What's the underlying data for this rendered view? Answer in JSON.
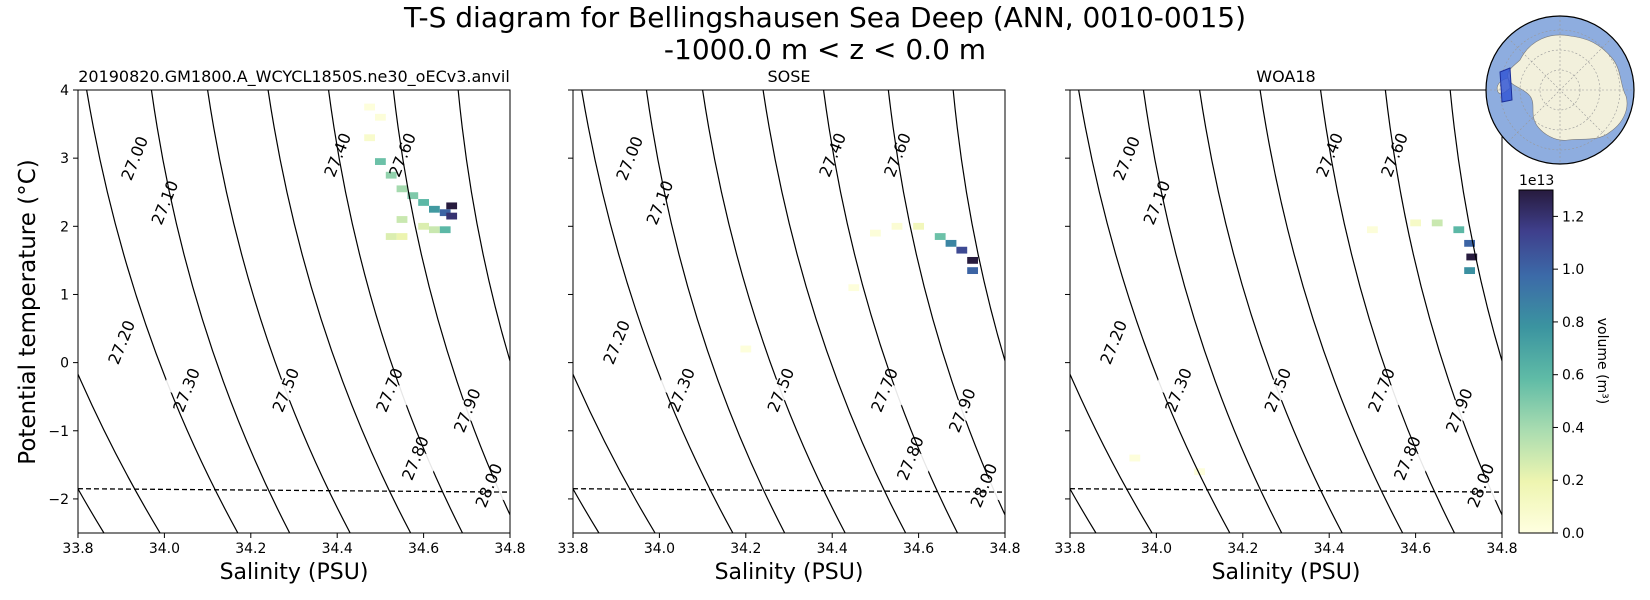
{
  "figure": {
    "title_line1": "T-S diagram for Bellingshausen Sea Deep (ANN, 0010-0015)",
    "title_line2": "-1000.0 m < z < 0.0 m"
  },
  "chart_data": [
    {
      "type": "heatmap",
      "title": "20190820.GM1800.A_WCYCL1850S.ne30_oECv3.anvil",
      "xlabel": "Salinity (PSU)",
      "ylabel": "Potential temperature (°C)",
      "xlim": [
        33.8,
        34.8
      ],
      "ylim": [
        -2.5,
        4
      ],
      "cells": [
        {
          "s": 34.475,
          "t": 3.75,
          "v": 0.02
        },
        {
          "s": 34.5,
          "t": 3.6,
          "v": 0.03
        },
        {
          "s": 34.475,
          "t": 3.3,
          "v": 0.08
        },
        {
          "s": 34.5,
          "t": 2.95,
          "v": 0.55
        },
        {
          "s": 34.525,
          "t": 2.75,
          "v": 0.45
        },
        {
          "s": 34.55,
          "t": 2.55,
          "v": 0.4
        },
        {
          "s": 34.575,
          "t": 2.45,
          "v": 0.5
        },
        {
          "s": 34.6,
          "t": 2.35,
          "v": 0.6
        },
        {
          "s": 34.625,
          "t": 2.25,
          "v": 0.75
        },
        {
          "s": 34.65,
          "t": 2.2,
          "v": 1.0
        },
        {
          "s": 34.665,
          "t": 2.3,
          "v": 1.3
        },
        {
          "s": 34.665,
          "t": 2.15,
          "v": 1.2
        },
        {
          "s": 34.55,
          "t": 2.1,
          "v": 0.3
        },
        {
          "s": 34.6,
          "t": 2.0,
          "v": 0.25
        },
        {
          "s": 34.625,
          "t": 1.95,
          "v": 0.3
        },
        {
          "s": 34.65,
          "t": 1.95,
          "v": 0.6
        },
        {
          "s": 34.525,
          "t": 1.85,
          "v": 0.25
        },
        {
          "s": 34.55,
          "t": 1.85,
          "v": 0.2
        }
      ],
      "isopycnals": [
        "27.00",
        "27.10",
        "27.20",
        "27.30",
        "27.40",
        "27.50",
        "27.60",
        "27.70",
        "27.80",
        "27.90",
        "28.00"
      ],
      "freezing_line_t": [
        -1.85,
        -1.9
      ]
    },
    {
      "type": "heatmap",
      "title": "SOSE",
      "xlabel": "Salinity (PSU)",
      "xlim": [
        33.8,
        34.8
      ],
      "ylim": [
        -2.5,
        4
      ],
      "cells": [
        {
          "s": 34.6,
          "t": 2.0,
          "v": 0.15
        },
        {
          "s": 34.65,
          "t": 1.85,
          "v": 0.55
        },
        {
          "s": 34.675,
          "t": 1.75,
          "v": 0.85
        },
        {
          "s": 34.7,
          "t": 1.65,
          "v": 1.1
        },
        {
          "s": 34.725,
          "t": 1.5,
          "v": 1.3
        },
        {
          "s": 34.725,
          "t": 1.35,
          "v": 1.0
        },
        {
          "s": 34.55,
          "t": 2.0,
          "v": 0.05
        },
        {
          "s": 34.5,
          "t": 1.9,
          "v": 0.03
        },
        {
          "s": 34.45,
          "t": 1.1,
          "v": 0.02
        },
        {
          "s": 34.2,
          "t": 0.2,
          "v": 0.02
        }
      ],
      "isopycnals": [
        "27.00",
        "27.10",
        "27.20",
        "27.30",
        "27.40",
        "27.50",
        "27.60",
        "27.70",
        "27.80",
        "27.90",
        "28.00"
      ],
      "freezing_line_t": [
        -1.85,
        -1.9
      ]
    },
    {
      "type": "heatmap",
      "title": "WOA18",
      "xlabel": "Salinity (PSU)",
      "xlim": [
        33.8,
        34.8
      ],
      "ylim": [
        -2.5,
        4
      ],
      "cells": [
        {
          "s": 34.65,
          "t": 2.05,
          "v": 0.3
        },
        {
          "s": 34.7,
          "t": 1.95,
          "v": 0.6
        },
        {
          "s": 34.725,
          "t": 1.75,
          "v": 1.0
        },
        {
          "s": 34.73,
          "t": 1.55,
          "v": 1.3
        },
        {
          "s": 34.725,
          "t": 1.35,
          "v": 0.8
        },
        {
          "s": 34.6,
          "t": 2.05,
          "v": 0.1
        },
        {
          "s": 34.5,
          "t": 1.95,
          "v": 0.03
        },
        {
          "s": 33.95,
          "t": -1.4,
          "v": 0.02
        },
        {
          "s": 34.1,
          "t": -1.6,
          "v": 0.02
        }
      ],
      "isopycnals": [
        "27.00",
        "27.10",
        "27.20",
        "27.30",
        "27.40",
        "27.50",
        "27.60",
        "27.70",
        "27.80",
        "27.90",
        "28.00"
      ],
      "freezing_line_t": [
        -1.85,
        -1.9
      ]
    }
  ],
  "axes": {
    "x_ticks": [
      "33.8",
      "34.0",
      "34.2",
      "34.4",
      "34.6",
      "34.8"
    ],
    "y_ticks": [
      "4",
      "3",
      "2",
      "1",
      "0",
      "−1",
      "−2"
    ]
  },
  "colorbar": {
    "label": "volume (m³)",
    "exponent": "1e13",
    "ticks": [
      "1.2",
      "1.0",
      "0.8",
      "0.6",
      "0.4",
      "0.2",
      "0.0"
    ],
    "range": [
      0,
      1.3
    ]
  },
  "inset_map": {
    "region": "Bellingshausen Sea",
    "ocean_color": "#8eaddf",
    "land_color": "#f2f0dc",
    "region_color": "#3457d5"
  }
}
